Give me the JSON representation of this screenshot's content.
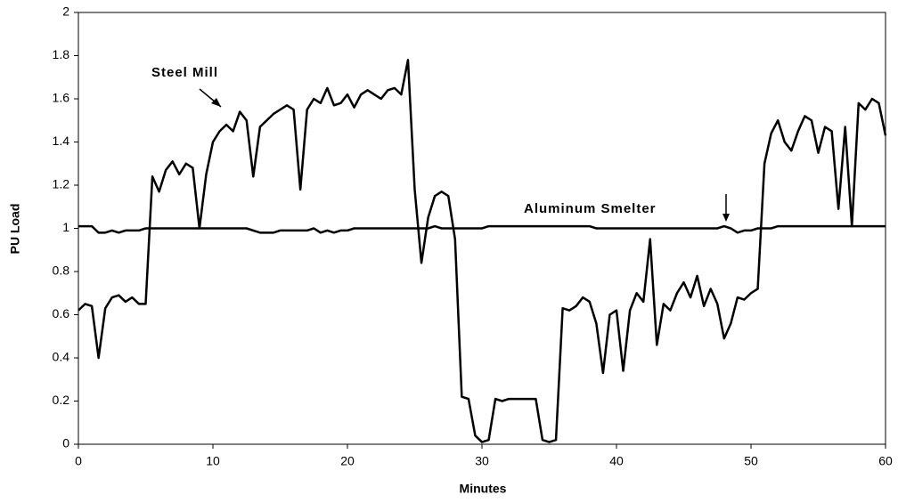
{
  "chart_data": {
    "type": "line",
    "x_label": "Minutes",
    "y_label": "PU Load",
    "x": [
      0,
      0.5,
      1,
      1.5,
      2,
      2.5,
      3,
      3.5,
      4,
      4.5,
      5,
      5.5,
      6,
      6.5,
      7,
      7.5,
      8,
      8.5,
      9,
      9.5,
      10,
      10.5,
      11,
      11.5,
      12,
      12.5,
      13,
      13.5,
      14,
      14.5,
      15,
      15.5,
      16,
      16.5,
      17,
      17.5,
      18,
      18.5,
      19,
      19.5,
      20,
      20.5,
      21,
      21.5,
      22,
      22.5,
      23,
      23.5,
      24,
      24.5,
      25,
      25.5,
      26,
      26.5,
      27,
      27.5,
      28,
      28.5,
      29,
      29.5,
      30,
      30.5,
      31,
      31.5,
      32,
      32.5,
      33,
      33.5,
      34,
      34.5,
      35,
      35.5,
      36,
      36.5,
      37,
      37.5,
      38,
      38.5,
      39,
      39.5,
      40,
      40.5,
      41,
      41.5,
      42,
      42.5,
      43,
      43.5,
      44,
      44.5,
      45,
      45.5,
      46,
      46.5,
      47,
      47.5,
      48,
      48.5,
      49,
      49.5,
      50,
      50.5,
      51,
      51.5,
      52,
      52.5,
      53,
      53.5,
      54,
      54.5,
      55,
      55.5,
      56,
      56.5,
      57,
      57.5,
      58,
      58.5,
      59,
      59.5,
      60
    ],
    "series": [
      {
        "name": "Steel Mill",
        "color": "#000000",
        "values": [
          0.62,
          0.65,
          0.64,
          0.4,
          0.63,
          0.68,
          0.69,
          0.66,
          0.68,
          0.65,
          0.65,
          1.24,
          1.17,
          1.27,
          1.31,
          1.25,
          1.3,
          1.28,
          1.0,
          1.25,
          1.4,
          1.45,
          1.48,
          1.45,
          1.54,
          1.5,
          1.24,
          1.47,
          1.5,
          1.53,
          1.55,
          1.57,
          1.55,
          1.18,
          1.55,
          1.6,
          1.58,
          1.65,
          1.57,
          1.58,
          1.62,
          1.56,
          1.62,
          1.64,
          1.62,
          1.6,
          1.64,
          1.65,
          1.62,
          1.78,
          1.18,
          0.84,
          1.05,
          1.15,
          1.17,
          1.15,
          0.95,
          0.22,
          0.21,
          0.04,
          0.01,
          0.02,
          0.21,
          0.2,
          0.21,
          0.21,
          0.21,
          0.21,
          0.21,
          0.02,
          0.01,
          0.02,
          0.63,
          0.62,
          0.64,
          0.68,
          0.66,
          0.56,
          0.33,
          0.6,
          0.62,
          0.34,
          0.62,
          0.7,
          0.66,
          0.95,
          0.46,
          0.65,
          0.62,
          0.7,
          0.75,
          0.68,
          0.78,
          0.64,
          0.72,
          0.65,
          0.49,
          0.56,
          0.68,
          0.67,
          0.7,
          0.72,
          1.3,
          1.44,
          1.5,
          1.4,
          1.36,
          1.45,
          1.52,
          1.5,
          1.35,
          1.47,
          1.45,
          1.09,
          1.47,
          1.01,
          1.58,
          1.55,
          1.6,
          1.58,
          1.43
        ]
      },
      {
        "name": "Aluminum Smelter",
        "color": "#000000",
        "values": [
          1.01,
          1.01,
          1.01,
          0.98,
          0.98,
          0.99,
          0.98,
          0.99,
          0.99,
          0.99,
          1.0,
          1.0,
          1.0,
          1.0,
          1.0,
          1.0,
          1.0,
          1.0,
          1.0,
          1.0,
          1.0,
          1.0,
          1.0,
          1.0,
          1.0,
          1.0,
          0.99,
          0.98,
          0.98,
          0.98,
          0.99,
          0.99,
          0.99,
          0.99,
          0.99,
          1.0,
          0.98,
          0.99,
          0.98,
          0.99,
          0.99,
          1.0,
          1.0,
          1.0,
          1.0,
          1.0,
          1.0,
          1.0,
          1.0,
          1.0,
          1.0,
          1.0,
          1.0,
          1.01,
          1.0,
          1.0,
          1.0,
          1.0,
          1.0,
          1.0,
          1.0,
          1.01,
          1.01,
          1.01,
          1.01,
          1.01,
          1.01,
          1.01,
          1.01,
          1.01,
          1.01,
          1.01,
          1.01,
          1.01,
          1.01,
          1.01,
          1.01,
          1.0,
          1.0,
          1.0,
          1.0,
          1.0,
          1.0,
          1.0,
          1.0,
          1.0,
          1.0,
          1.0,
          1.0,
          1.0,
          1.0,
          1.0,
          1.0,
          1.0,
          1.0,
          1.0,
          1.01,
          1.0,
          0.98,
          0.99,
          0.99,
          1.0,
          1.0,
          1.0,
          1.01,
          1.01,
          1.01,
          1.01,
          1.01,
          1.01,
          1.01,
          1.01,
          1.01,
          1.01,
          1.01,
          1.01,
          1.01,
          1.01,
          1.01,
          1.01,
          1.01
        ]
      }
    ],
    "xlim": [
      0,
      60
    ],
    "xticks": [
      0,
      10,
      20,
      30,
      40,
      50,
      60
    ],
    "ylim": [
      0,
      2
    ],
    "yticks": [
      0,
      0.2,
      0.4,
      0.6,
      0.8,
      1,
      1.2,
      1.4,
      1.6,
      1.8,
      2
    ]
  }
}
